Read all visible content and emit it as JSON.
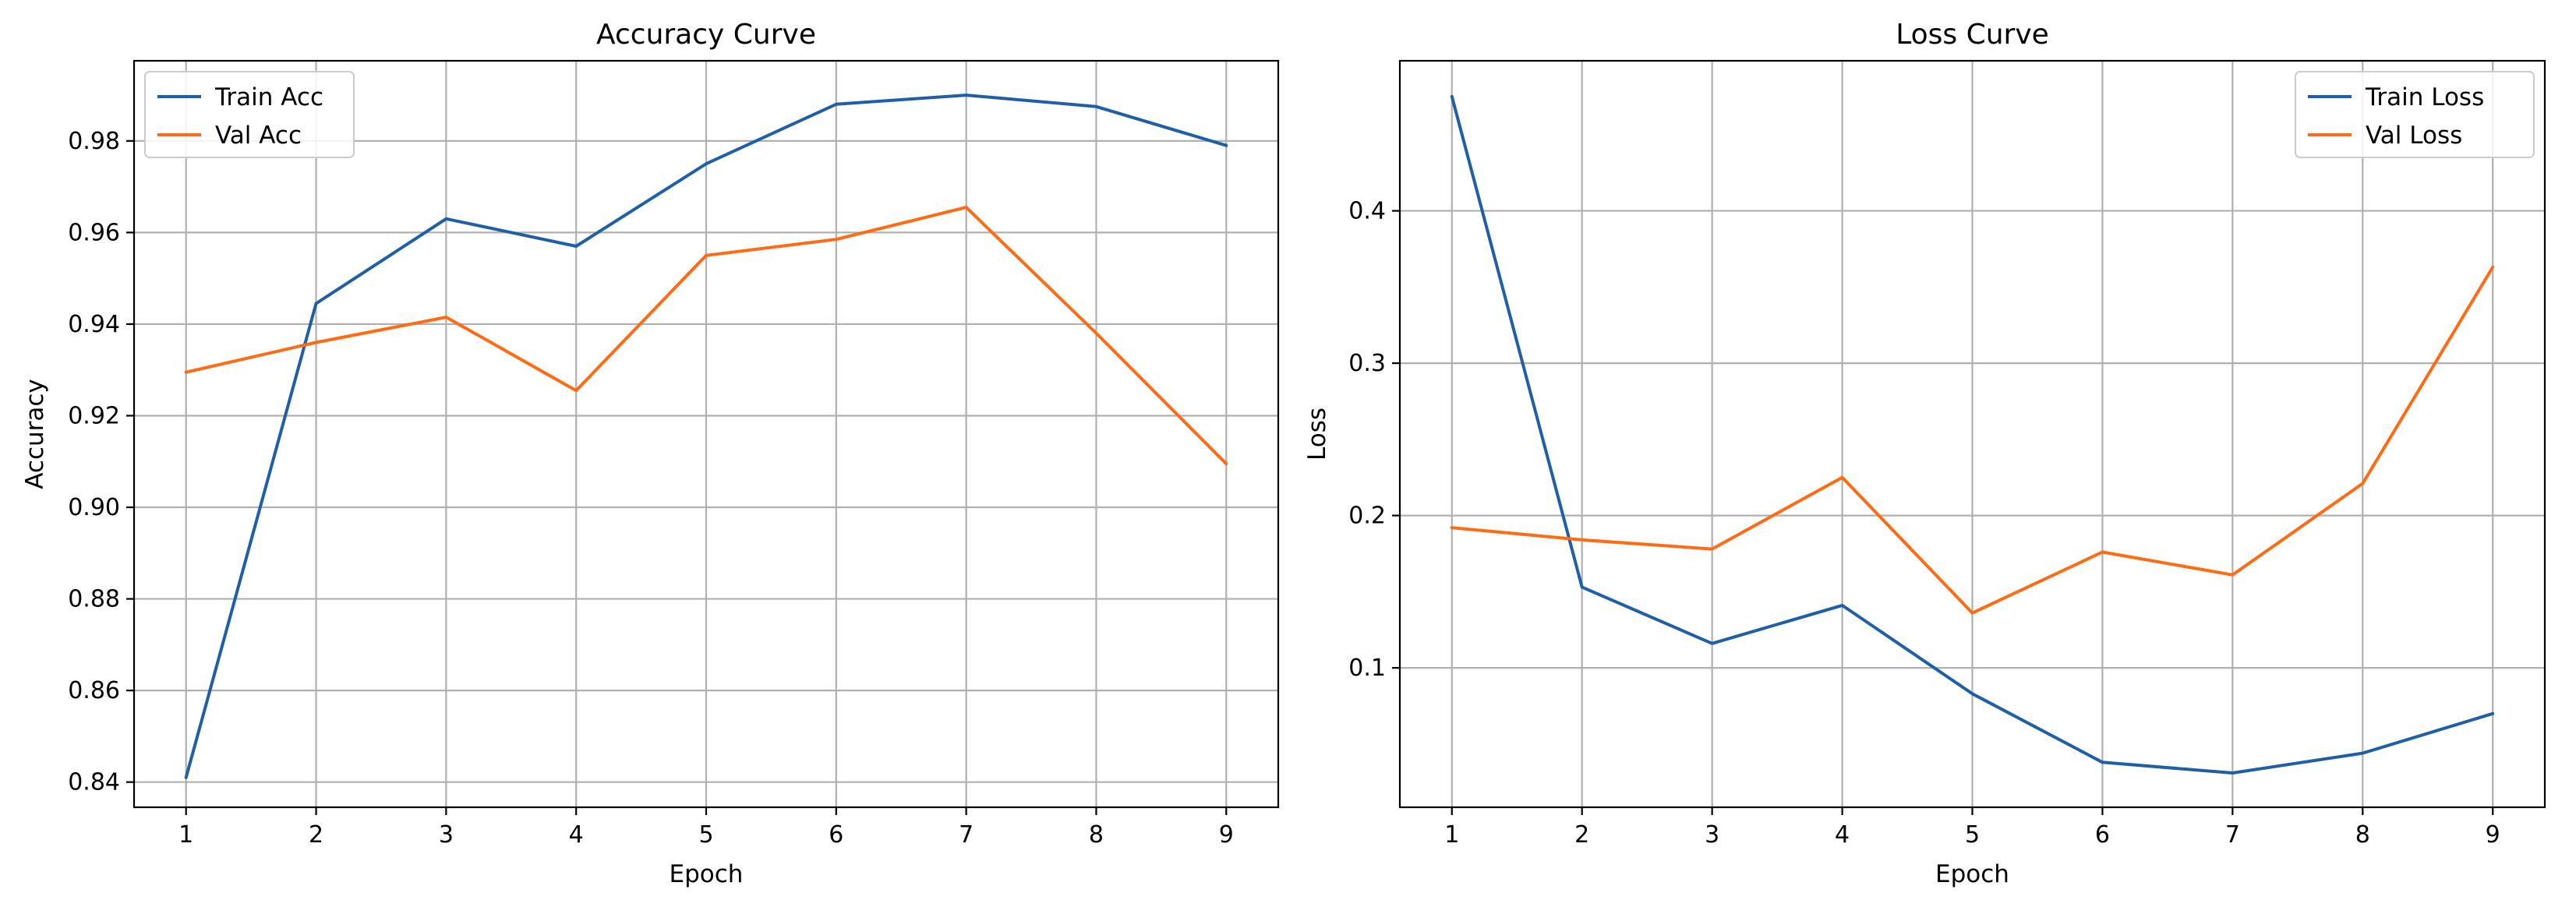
{
  "chart_data": [
    {
      "type": "line",
      "title": "Accuracy Curve",
      "xlabel": "Epoch",
      "ylabel": "Accuracy",
      "x": [
        1,
        2,
        3,
        4,
        5,
        6,
        7,
        8,
        9
      ],
      "xlim": [
        0.6,
        9.4
      ],
      "ylim": [
        0.8345,
        0.9975
      ],
      "xticks": [
        1,
        2,
        3,
        4,
        5,
        6,
        7,
        8,
        9
      ],
      "yticks": [
        0.84,
        0.86,
        0.88,
        0.9,
        0.92,
        0.94,
        0.96,
        0.98
      ],
      "ytick_labels": [
        "0.84",
        "0.86",
        "0.88",
        "0.90",
        "0.92",
        "0.94",
        "0.96",
        "0.98"
      ],
      "grid": true,
      "legend_position": "top-left",
      "series": [
        {
          "name": "Train Acc",
          "color": "#1f5fa8",
          "values": [
            0.841,
            0.9445,
            0.963,
            0.957,
            0.975,
            0.988,
            0.99,
            0.9875,
            0.979
          ]
        },
        {
          "name": "Val Acc",
          "color": "#ff6a13",
          "values": [
            0.9295,
            0.936,
            0.9415,
            0.9255,
            0.955,
            0.9585,
            0.9655,
            0.938,
            0.9095
          ]
        }
      ]
    },
    {
      "type": "line",
      "title": "Loss Curve",
      "xlabel": "Epoch",
      "ylabel": "Loss",
      "x": [
        1,
        2,
        3,
        4,
        5,
        6,
        7,
        8,
        9
      ],
      "xlim": [
        0.6,
        9.4
      ],
      "ylim": [
        0.0085,
        0.4985
      ],
      "xticks": [
        1,
        2,
        3,
        4,
        5,
        6,
        7,
        8,
        9
      ],
      "yticks": [
        0.1,
        0.2,
        0.3,
        0.4
      ],
      "ytick_labels": [
        "0.1",
        "0.2",
        "0.3",
        "0.4"
      ],
      "grid": true,
      "legend_position": "top-right",
      "series": [
        {
          "name": "Train Loss",
          "color": "#1f5fa8",
          "values": [
            0.475,
            0.153,
            0.116,
            0.141,
            0.083,
            0.038,
            0.031,
            0.044,
            0.07
          ]
        },
        {
          "name": "Val Loss",
          "color": "#ff6a13",
          "values": [
            0.192,
            0.184,
            0.178,
            0.225,
            0.136,
            0.176,
            0.161,
            0.221,
            0.363
          ]
        }
      ]
    }
  ]
}
